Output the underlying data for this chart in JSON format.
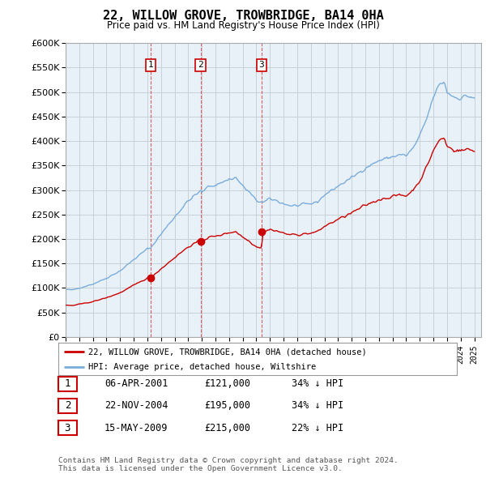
{
  "title": "22, WILLOW GROVE, TROWBRIDGE, BA14 0HA",
  "subtitle": "Price paid vs. HM Land Registry's House Price Index (HPI)",
  "ytick_values": [
    0,
    50000,
    100000,
    150000,
    200000,
    250000,
    300000,
    350000,
    400000,
    450000,
    500000,
    550000,
    600000
  ],
  "sale_color": "#cc0000",
  "hpi_color": "#7aaddb",
  "chart_bg": "#e8f0f8",
  "sale_dates": [
    2001.25,
    2004.9,
    2009.37
  ],
  "sale_prices": [
    121000,
    195000,
    215000
  ],
  "sale_labels": [
    "1",
    "2",
    "3"
  ],
  "legend_sale": "22, WILLOW GROVE, TROWBRIDGE, BA14 0HA (detached house)",
  "legend_hpi": "HPI: Average price, detached house, Wiltshire",
  "table_rows": [
    [
      "1",
      "06-APR-2001",
      "£121,000",
      "34% ↓ HPI"
    ],
    [
      "2",
      "22-NOV-2004",
      "£195,000",
      "34% ↓ HPI"
    ],
    [
      "3",
      "15-MAY-2009",
      "£215,000",
      "22% ↓ HPI"
    ]
  ],
  "footnote": "Contains HM Land Registry data © Crown copyright and database right 2024.\nThis data is licensed under the Open Government Licence v3.0.",
  "background_color": "#ffffff",
  "grid_color": "#c8d0d8",
  "xmin": 1995,
  "xmax": 2025.5
}
